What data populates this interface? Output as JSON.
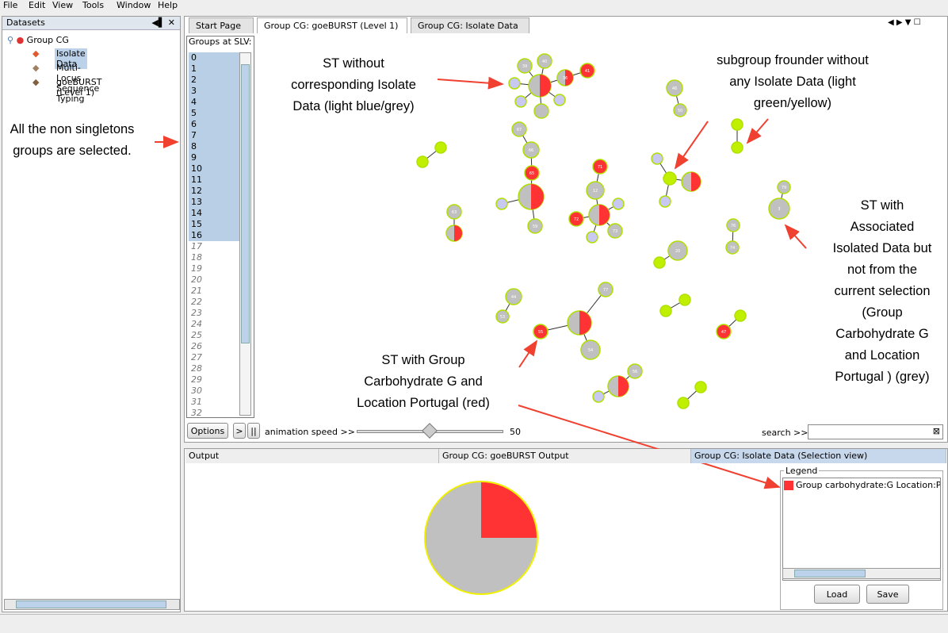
{
  "menu": [
    "File",
    "Edit",
    "View",
    "Tools",
    "Window",
    "Help"
  ],
  "datasets": {
    "title": "Datasets",
    "root": "Group CG",
    "children": [
      "Isolate Data",
      "Multi-Locus Sequence Typing",
      "goeBURST (Level 1)"
    ]
  },
  "tabs": [
    "Start Page",
    "Group CG: goeBURST (Level 1)",
    "Group CG: Isolate Data"
  ],
  "groups": {
    "title": "Groups at SLV:",
    "items": [
      {
        "label": 0,
        "selected": true
      },
      {
        "label": 1,
        "selected": true
      },
      {
        "label": 2,
        "selected": true
      },
      {
        "label": 3,
        "selected": true
      },
      {
        "label": 4,
        "selected": true
      },
      {
        "label": 5,
        "selected": true
      },
      {
        "label": 6,
        "selected": true
      },
      {
        "label": 7,
        "selected": true
      },
      {
        "label": 8,
        "selected": true
      },
      {
        "label": 9,
        "selected": true
      },
      {
        "label": 10,
        "selected": true
      },
      {
        "label": 11,
        "selected": true
      },
      {
        "label": 12,
        "selected": true
      },
      {
        "label": 13,
        "selected": true
      },
      {
        "label": 14,
        "selected": true
      },
      {
        "label": 15,
        "selected": true
      },
      {
        "label": 16,
        "selected": true
      },
      {
        "label": 17,
        "selected": false
      },
      {
        "label": 18,
        "selected": false
      },
      {
        "label": 19,
        "selected": false
      },
      {
        "label": 20,
        "selected": false
      },
      {
        "label": 21,
        "selected": false
      },
      {
        "label": 22,
        "selected": false
      },
      {
        "label": 23,
        "selected": false
      },
      {
        "label": 24,
        "selected": false
      },
      {
        "label": 25,
        "selected": false
      },
      {
        "label": 26,
        "selected": false
      },
      {
        "label": 27,
        "selected": false
      },
      {
        "label": 28,
        "selected": false
      },
      {
        "label": 29,
        "selected": false
      },
      {
        "label": 30,
        "selected": false
      },
      {
        "label": 31,
        "selected": false
      },
      {
        "label": 32,
        "selected": false
      }
    ]
  },
  "controls": {
    "options": "Options",
    "animation": "animation speed >>",
    "speed": 50,
    "search": "search >>"
  },
  "graph": {
    "nodes": [
      {
        "label": "39",
        "color": "#c0c0c0"
      },
      {
        "label": "40",
        "color": "#c0c0c0"
      },
      {
        "label": "41",
        "color": "#ff3333"
      },
      {
        "colors": [
          "#ff3333",
          "#c0c0c0"
        ]
      },
      {
        "label": "36",
        "colors": [
          "#ff3333",
          "#c0c0c0"
        ]
      },
      {
        "color": "#c8c8f0"
      },
      {
        "color": "#c8c8f0"
      },
      {
        "color": "#c8c8f0"
      },
      {
        "color": "#c0c0c0"
      },
      {
        "label": "46",
        "color": "#c0c0c0"
      },
      {
        "label": "50",
        "color": "#c0c0c0"
      },
      {
        "color": "#c0f000"
      },
      {
        "color": "#c0f000"
      },
      {
        "color": "#c0f000"
      },
      {
        "color": "#c0f000"
      },
      {
        "label": "67",
        "color": "#c0c0c0"
      },
      {
        "label": "66",
        "color": "#c0c0c0"
      },
      {
        "label": "65",
        "color": "#ff3333"
      },
      {
        "colors": [
          "#ff3333",
          "#c0c0c0"
        ]
      },
      {
        "color": "#c8c8f0"
      },
      {
        "label": "59",
        "color": "#c0c0c0"
      },
      {
        "label": "71",
        "color": "#ff3333"
      },
      {
        "label": "12",
        "color": "#c0c0c0"
      },
      {
        "colors": [
          "#ff3333",
          "#c0c0c0"
        ]
      },
      {
        "label": "72",
        "color": "#ff3333"
      },
      {
        "color": "#c8c8f0"
      },
      {
        "label": "73",
        "color": "#c0c0c0"
      },
      {
        "color": "#c8c8f0"
      },
      {
        "color": "#c8c8f0"
      },
      {
        "color": "#c0f000"
      },
      {
        "colors": [
          "#ff3333",
          "#c0c0c0"
        ]
      },
      {
        "color": "#c8c8f0"
      },
      {
        "label": "63",
        "color": "#c0c0c0"
      },
      {
        "colors": [
          "#ff3333",
          "#c0c0c0"
        ]
      },
      {
        "label": "79",
        "color": "#c0c0c0"
      },
      {
        "label": "3",
        "color": "#c0c0c0"
      },
      {
        "label": "76",
        "color": "#c0c0c0"
      },
      {
        "label": "74",
        "color": "#c0c0c0"
      },
      {
        "label": "20",
        "color": "#c0c0c0"
      },
      {
        "color": "#c0f000"
      },
      {
        "label": "44",
        "color": "#c0c0c0"
      },
      {
        "label": "53",
        "color": "#c0c0c0"
      },
      {
        "label": "77",
        "color": "#c0c0c0"
      },
      {
        "colors": [
          "#ff3333",
          "#c0c0c0"
        ]
      },
      {
        "label": "55",
        "color": "#ff3333"
      },
      {
        "label": "54",
        "color": "#c0c0c0"
      },
      {
        "color": "#c0f000"
      },
      {
        "color": "#c0f000"
      },
      {
        "color": "#c0f000"
      },
      {
        "label": "47",
        "color": "#ff3333"
      },
      {
        "label": "56",
        "color": "#c0c0c0"
      },
      {
        "colors": [
          "#ff3333",
          "#c0c0c0"
        ]
      },
      {
        "color": "#c8c8f0"
      },
      {
        "color": "#c0f000"
      },
      {
        "color": "#c0f000"
      }
    ]
  },
  "annotations": [
    {
      "lines": [
        "All the non singletons",
        "groups are selected."
      ]
    },
    {
      "lines": [
        "ST without",
        "corresponding Isolate",
        "Data (light blue/grey)"
      ]
    },
    {
      "lines": [
        "subgroup frounder without",
        "any Isolate Data (light",
        "green/yellow)"
      ]
    },
    {
      "lines": [
        "ST with",
        "Associated",
        "Isolated Data but",
        "not from the",
        "current selection",
        "(Group",
        "Carbohydrate G",
        "and Location",
        "Portugal ) (grey)"
      ]
    },
    {
      "lines": [
        "ST with Group",
        "Carbohydrate G and",
        "Location Portugal (red)"
      ]
    }
  ],
  "bottom_tabs": [
    "Output",
    "Group CG: goeBURST Output",
    "Group CG: Isolate Data (Selection view)"
  ],
  "selection_pie": {
    "values": [
      25,
      75
    ],
    "colors": [
      "#ff3333",
      "#c0c0c0"
    ]
  },
  "legend": {
    "title": "Legend",
    "entries": [
      {
        "label": "Group carbohydrate:G Location:Po",
        "color": "#ff3333"
      }
    ],
    "load": "Load",
    "save": "Save"
  }
}
